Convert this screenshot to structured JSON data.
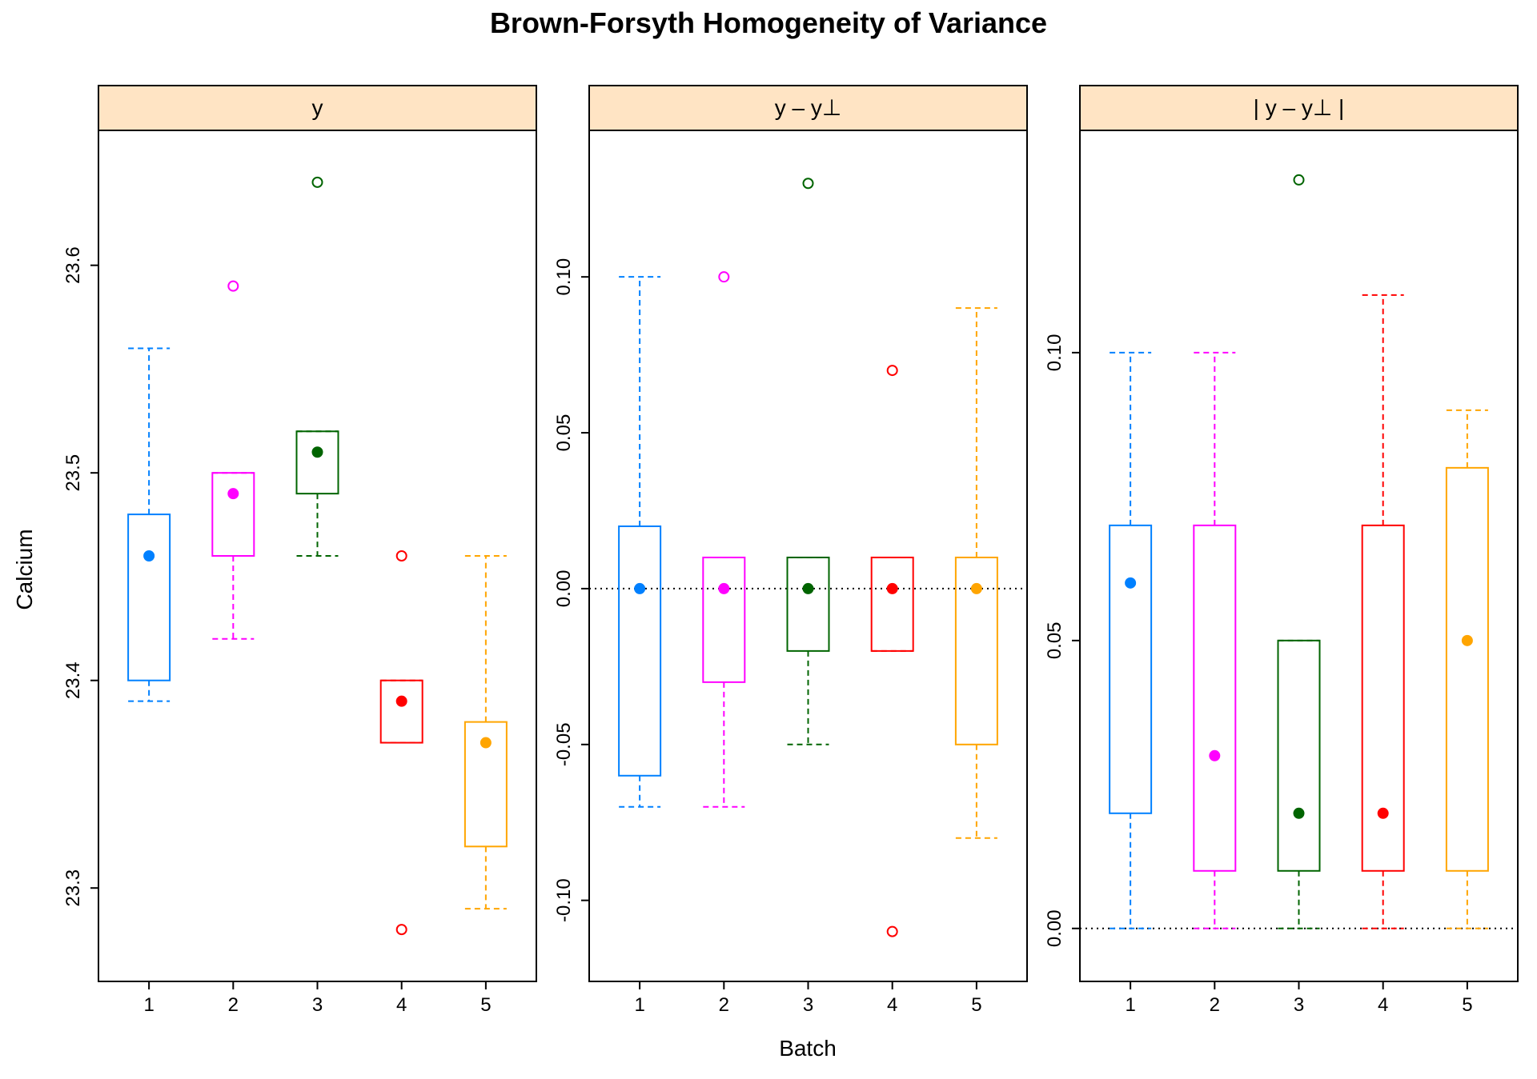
{
  "title": "Brown-Forsyth Homogeneity of Variance",
  "xlabel": "Batch",
  "ylabel": "Calcium",
  "colors": {
    "strip_bg": "#FFE4C4",
    "groups": [
      "#0080FF",
      "#FF00FF",
      "#006400",
      "#FF0000",
      "#FFA500"
    ]
  },
  "chart_data": [
    {
      "type": "boxplot",
      "panel_label": "y",
      "categories": [
        "1",
        "2",
        "3",
        "4",
        "5"
      ],
      "ylim": [
        23.255,
        23.665
      ],
      "yticks": [
        23.3,
        23.4,
        23.5,
        23.6
      ],
      "ytick_labels": [
        "23.3",
        "23.4",
        "23.5",
        "23.6"
      ],
      "reference_line": null,
      "boxes": [
        {
          "group": "1",
          "whisker_low": 23.39,
          "q1": 23.4,
          "median": 23.46,
          "q3": 23.48,
          "whisker_high": 23.56,
          "outliers": []
        },
        {
          "group": "2",
          "whisker_low": 23.42,
          "q1": 23.46,
          "median": 23.49,
          "q3": 23.5,
          "whisker_high": 23.5,
          "outliers": [
            23.59
          ]
        },
        {
          "group": "3",
          "whisker_low": 23.46,
          "q1": 23.49,
          "median": 23.51,
          "q3": 23.52,
          "whisker_high": 23.52,
          "outliers": [
            23.64
          ]
        },
        {
          "group": "4",
          "whisker_low": 23.37,
          "q1": 23.37,
          "median": 23.39,
          "q3": 23.4,
          "whisker_high": 23.4,
          "outliers": [
            23.28,
            23.46
          ]
        },
        {
          "group": "5",
          "whisker_low": 23.29,
          "q1": 23.32,
          "median": 23.37,
          "q3": 23.38,
          "whisker_high": 23.46,
          "outliers": []
        }
      ]
    },
    {
      "type": "boxplot",
      "panel_label": "y – y⊥",
      "categories": [
        "1",
        "2",
        "3",
        "4",
        "5"
      ],
      "ylim": [
        -0.126,
        0.147
      ],
      "yticks": [
        -0.1,
        -0.05,
        0.0,
        0.05,
        0.1
      ],
      "ytick_labels": [
        "-0.10",
        "-0.05",
        "0.00",
        "0.05",
        "0.10"
      ],
      "reference_line": 0,
      "boxes": [
        {
          "group": "1",
          "whisker_low": -0.07,
          "q1": -0.06,
          "median": 0.0,
          "q3": 0.02,
          "whisker_high": 0.1,
          "outliers": []
        },
        {
          "group": "2",
          "whisker_low": -0.07,
          "q1": -0.03,
          "median": 0.0,
          "q3": 0.01,
          "whisker_high": 0.01,
          "outliers": [
            0.1
          ]
        },
        {
          "group": "3",
          "whisker_low": -0.05,
          "q1": -0.02,
          "median": 0.0,
          "q3": 0.01,
          "whisker_high": 0.01,
          "outliers": [
            0.13
          ]
        },
        {
          "group": "4",
          "whisker_low": -0.02,
          "q1": -0.02,
          "median": 0.0,
          "q3": 0.01,
          "whisker_high": 0.01,
          "outliers": [
            -0.11,
            0.07
          ]
        },
        {
          "group": "5",
          "whisker_low": -0.08,
          "q1": -0.05,
          "median": 0.0,
          "q3": 0.01,
          "whisker_high": 0.09,
          "outliers": []
        }
      ]
    },
    {
      "type": "boxplot",
      "panel_label": "|  y – y⊥  |",
      "categories": [
        "1",
        "2",
        "3",
        "4",
        "5"
      ],
      "ylim": [
        -0.0092,
        0.1386
      ],
      "yticks": [
        0.0,
        0.05,
        0.1
      ],
      "ytick_labels": [
        "0.00",
        "0.05",
        "0.10"
      ],
      "reference_line": 0,
      "boxes": [
        {
          "group": "1",
          "whisker_low": 0.0,
          "q1": 0.02,
          "median": 0.06,
          "q3": 0.07,
          "whisker_high": 0.1,
          "outliers": []
        },
        {
          "group": "2",
          "whisker_low": 0.0,
          "q1": 0.01,
          "median": 0.03,
          "q3": 0.07,
          "whisker_high": 0.1,
          "outliers": []
        },
        {
          "group": "3",
          "whisker_low": 0.0,
          "q1": 0.01,
          "median": 0.02,
          "q3": 0.05,
          "whisker_high": 0.05,
          "outliers": [
            0.13
          ]
        },
        {
          "group": "4",
          "whisker_low": 0.0,
          "q1": 0.01,
          "median": 0.02,
          "q3": 0.07,
          "whisker_high": 0.11,
          "outliers": []
        },
        {
          "group": "5",
          "whisker_low": 0.0,
          "q1": 0.01,
          "median": 0.05,
          "q3": 0.08,
          "whisker_high": 0.09,
          "outliers": []
        }
      ]
    }
  ]
}
